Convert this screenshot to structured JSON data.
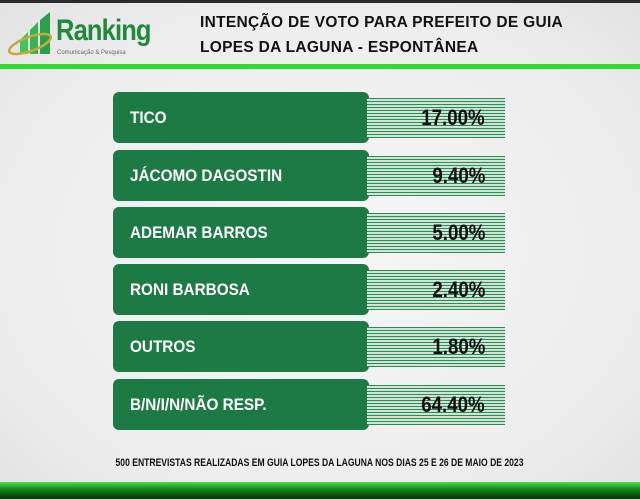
{
  "logo": {
    "name": "Ranking",
    "tagline": "Comunicação & Pesquisa"
  },
  "title_lines": [
    "INTENÇÃO DE VOTO PARA PREFEITO DE GUIA",
    "LOPES DA LAGUNA - ESPONTÂNEA"
  ],
  "results": [
    {
      "label": "TICO",
      "value": "17.00%"
    },
    {
      "label": "JÁCOMO DAGOSTIN",
      "value": "9.40%"
    },
    {
      "label": "ADEMAR BARROS",
      "value": "5.00%"
    },
    {
      "label": "RONI BARBOSA",
      "value": "2.40%"
    },
    {
      "label": "OUTROS",
      "value": "1.80%"
    },
    {
      "label": "B/N/I/N/NÃO RESP.",
      "value": "64.40%"
    }
  ],
  "footer": "500 ENTREVISTAS REALIZADAS EM GUIA LOPES DA LAGUNA NOS DIAS 25 E 26 DE MAIO DE 2023",
  "colors": {
    "row_green": "#1c7a45",
    "accent_line": "#2edb2e"
  }
}
